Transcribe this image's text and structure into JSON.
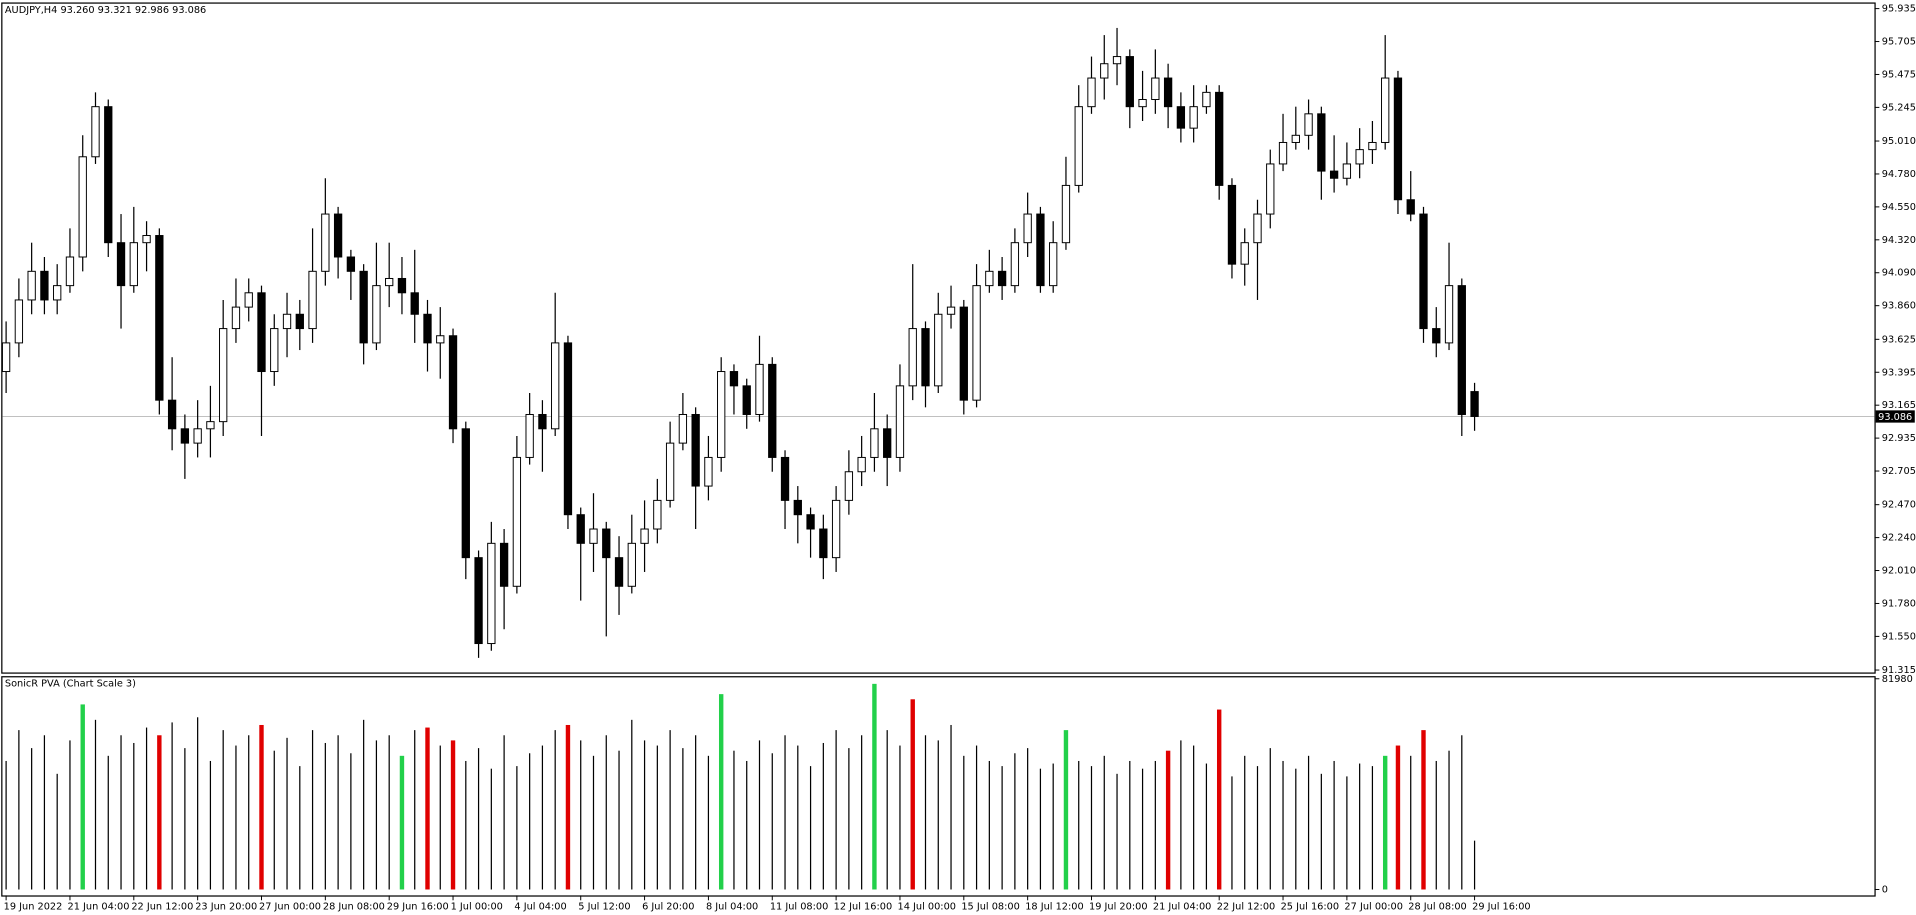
{
  "chart_data": [
    {
      "type": "candlestick",
      "title": "AUDJPY,H4  93.260 93.321 92.986 93.086",
      "categories": [
        "19 Jun 2022",
        null,
        null,
        null,
        null,
        "21 Jun 04:00",
        null,
        null,
        null,
        null,
        "22 Jun 12:00",
        null,
        null,
        null,
        null,
        "23 Jun 20:00",
        null,
        null,
        null,
        null,
        "27 Jun 00:00",
        null,
        null,
        null,
        null,
        "28 Jun 08:00",
        null,
        null,
        null,
        null,
        "29 Jun 16:00",
        null,
        null,
        null,
        null,
        "1 Jul 00:00",
        null,
        null,
        null,
        null,
        "4 Jul 04:00",
        null,
        null,
        null,
        null,
        "5 Jul 12:00",
        null,
        null,
        null,
        null,
        "6 Jul 20:00",
        null,
        null,
        null,
        null,
        "8 Jul 04:00",
        null,
        null,
        null,
        null,
        "11 Jul 08:00",
        null,
        null,
        null,
        null,
        "12 Jul 16:00",
        null,
        null,
        null,
        null,
        "14 Jul 00:00",
        null,
        null,
        null,
        null,
        "15 Jul 08:00",
        null,
        null,
        null,
        null,
        "18 Jul 12:00",
        null,
        null,
        null,
        null,
        "19 Jul 20:00",
        null,
        null,
        null,
        null,
        "21 Jul 04:00",
        null,
        null,
        null,
        null,
        "22 Jul 12:00",
        null,
        null,
        null,
        null,
        "25 Jul 16:00",
        null,
        null,
        null,
        null,
        "27 Jul 00:00",
        null,
        null,
        null,
        null,
        "28 Jul 08:00",
        null,
        null,
        null,
        null,
        "29 Jul 16:00"
      ],
      "open": [
        93.4,
        93.6,
        93.9,
        94.1,
        93.9,
        94.0,
        94.2,
        94.9,
        95.25,
        94.3,
        94.0,
        94.3,
        94.35,
        93.2,
        93.0,
        92.9,
        93.0,
        93.05,
        93.7,
        93.85,
        93.95,
        93.4,
        93.7,
        93.8,
        93.7,
        94.1,
        94.5,
        94.2,
        94.1,
        93.6,
        94.0,
        94.05,
        93.95,
        93.8,
        93.6,
        93.65,
        93.0,
        92.1,
        91.5,
        92.2,
        91.9,
        92.8,
        93.1,
        93.0,
        93.6,
        92.4,
        92.2,
        92.3,
        92.1,
        91.9,
        92.2,
        92.3,
        92.5,
        92.9,
        93.1,
        92.6,
        92.8,
        93.4,
        93.3,
        93.1,
        93.45,
        92.8,
        92.5,
        92.4,
        92.3,
        92.1,
        92.5,
        92.7,
        92.8,
        93.0,
        92.8,
        93.3,
        93.7,
        93.3,
        93.8,
        93.85,
        93.2,
        94.0,
        94.1,
        94.0,
        94.3,
        94.5,
        94.0,
        94.3,
        94.7,
        95.25,
        95.45,
        95.55,
        95.6,
        95.25,
        95.3,
        95.45,
        95.25,
        95.1,
        95.25,
        95.35,
        94.7,
        94.15,
        94.3,
        94.5,
        94.85,
        95.0,
        95.05,
        95.2,
        94.8,
        94.75,
        94.85,
        94.95,
        95.0,
        95.45,
        94.6,
        94.5,
        93.7,
        93.6,
        94.0,
        93.26
      ],
      "high": [
        93.75,
        94.05,
        94.3,
        94.2,
        94.15,
        94.4,
        95.05,
        95.35,
        95.3,
        94.5,
        94.55,
        94.45,
        94.4,
        93.5,
        93.1,
        93.2,
        93.3,
        93.9,
        94.05,
        94.05,
        94.0,
        93.8,
        93.95,
        93.9,
        94.4,
        94.75,
        94.55,
        94.25,
        94.15,
        94.3,
        94.3,
        94.2,
        94.25,
        93.9,
        93.85,
        93.7,
        93.05,
        92.15,
        92.35,
        92.3,
        92.95,
        93.25,
        93.2,
        93.95,
        93.65,
        92.45,
        92.55,
        92.35,
        92.25,
        92.4,
        92.5,
        92.65,
        93.05,
        93.25,
        93.15,
        92.95,
        93.5,
        93.45,
        93.35,
        93.65,
        93.5,
        92.85,
        92.6,
        92.45,
        92.4,
        92.6,
        92.85,
        92.95,
        93.25,
        93.1,
        93.45,
        94.15,
        93.75,
        93.95,
        94.0,
        93.9,
        94.15,
        94.25,
        94.2,
        94.4,
        94.65,
        94.55,
        94.45,
        94.9,
        95.4,
        95.6,
        95.75,
        95.8,
        95.65,
        95.5,
        95.65,
        95.55,
        95.35,
        95.4,
        95.4,
        95.4,
        94.75,
        94.4,
        94.6,
        94.95,
        95.2,
        95.25,
        95.3,
        95.25,
        95.05,
        95.0,
        95.1,
        95.15,
        95.75,
        95.5,
        94.8,
        94.55,
        93.85,
        94.3,
        94.05,
        93.321
      ],
      "low": [
        93.25,
        93.5,
        93.8,
        93.8,
        93.8,
        93.95,
        94.1,
        94.85,
        94.2,
        93.7,
        93.95,
        94.1,
        93.1,
        92.85,
        92.65,
        92.8,
        92.8,
        92.95,
        93.6,
        93.75,
        92.95,
        93.3,
        93.5,
        93.55,
        93.6,
        94.0,
        94.05,
        93.9,
        93.45,
        93.55,
        93.85,
        93.8,
        93.6,
        93.4,
        93.35,
        92.9,
        91.95,
        91.4,
        91.45,
        91.6,
        91.85,
        92.75,
        92.7,
        92.95,
        92.3,
        91.8,
        92.0,
        91.55,
        91.7,
        91.85,
        92.0,
        92.2,
        92.45,
        92.85,
        92.3,
        92.5,
        92.7,
        93.1,
        93.0,
        93.05,
        92.7,
        92.3,
        92.2,
        92.1,
        91.95,
        92.0,
        92.4,
        92.6,
        92.7,
        92.6,
        92.7,
        93.2,
        93.15,
        93.25,
        93.7,
        93.1,
        93.15,
        93.95,
        93.9,
        93.95,
        94.2,
        93.95,
        93.95,
        94.25,
        94.65,
        95.2,
        95.3,
        95.4,
        95.1,
        95.15,
        95.2,
        95.1,
        95.0,
        95.0,
        95.2,
        94.6,
        94.05,
        94.0,
        93.9,
        94.4,
        94.8,
        94.95,
        94.95,
        94.6,
        94.65,
        94.7,
        94.75,
        94.85,
        94.95,
        94.5,
        94.45,
        93.6,
        93.5,
        93.55,
        92.95,
        92.986
      ],
      "close": [
        93.6,
        93.9,
        94.1,
        93.9,
        94.0,
        94.2,
        94.9,
        95.25,
        94.3,
        94.0,
        94.3,
        94.35,
        93.2,
        93.0,
        92.9,
        93.0,
        93.05,
        93.7,
        93.85,
        93.95,
        93.4,
        93.7,
        93.8,
        93.7,
        94.1,
        94.5,
        94.2,
        94.1,
        93.6,
        94.0,
        94.05,
        93.95,
        93.8,
        93.6,
        93.65,
        93.0,
        92.1,
        91.5,
        92.2,
        91.9,
        92.8,
        93.1,
        93.0,
        93.6,
        92.4,
        92.2,
        92.3,
        92.1,
        91.9,
        92.2,
        92.3,
        92.5,
        92.9,
        93.1,
        92.6,
        92.8,
        93.4,
        93.3,
        93.1,
        93.45,
        92.8,
        92.5,
        92.4,
        92.3,
        92.1,
        92.5,
        92.7,
        92.8,
        93.0,
        92.8,
        93.3,
        93.7,
        93.3,
        93.8,
        93.85,
        93.2,
        94.0,
        94.1,
        94.0,
        94.3,
        94.5,
        94.0,
        94.3,
        94.7,
        95.25,
        95.45,
        95.55,
        95.6,
        95.25,
        95.3,
        95.45,
        95.25,
        95.1,
        95.25,
        95.35,
        94.7,
        94.15,
        94.3,
        94.5,
        94.85,
        95.0,
        95.05,
        95.2,
        94.8,
        94.75,
        94.85,
        94.95,
        95.0,
        95.45,
        94.6,
        94.5,
        93.7,
        93.6,
        94.0,
        93.1,
        93.086
      ],
      "last_price": 93.086,
      "ylim": [
        91.298,
        95.978
      ],
      "yticks": [
        95.935,
        95.705,
        95.475,
        95.245,
        {
          "value": 95.01,
          "label": "95.010"
        },
        {
          "value": 94.78,
          "label": "94.780"
        },
        {
          "value": 94.55,
          "label": "94.550"
        },
        {
          "value": 94.32,
          "label": "94.320"
        },
        {
          "value": 94.09,
          "label": "94.090"
        },
        {
          "value": 93.86,
          "label": "93.860"
        },
        93.625,
        93.395,
        93.165,
        92.935,
        92.705,
        {
          "value": 92.47,
          "label": "92.470"
        },
        {
          "value": 92.24,
          "label": "92.240"
        },
        {
          "value": 92.01,
          "label": "92.010"
        },
        {
          "value": 91.78,
          "label": "91.780"
        },
        {
          "value": 91.55,
          "label": "91.550"
        },
        91.315
      ],
      "up_color": "#ffffff",
      "down_color": "#000000",
      "grid": false
    },
    {
      "type": "bar",
      "title": "SonicR PVA  (Chart Scale 3)",
      "series": [
        {
          "values": [
            50000,
            62000,
            55000,
            60000,
            45000,
            58000,
            72000,
            66000,
            52000,
            60000,
            57000,
            63000,
            60000,
            65000,
            55000,
            67000,
            50000,
            62000,
            56000,
            60000,
            64000,
            54000,
            59000,
            48000,
            62000,
            57000,
            60000,
            53000,
            66000,
            58000,
            60000,
            52000,
            62000,
            63000,
            56000,
            58000,
            50000,
            55000,
            47000,
            60000,
            48000,
            53000,
            56000,
            62000,
            64000,
            58000,
            52000,
            60000,
            54000,
            66000,
            58000,
            56000,
            62000,
            55000,
            60000,
            52000,
            76000,
            54000,
            50000,
            58000,
            53000,
            60000,
            56000,
            48000,
            57000,
            62000,
            55000,
            60000,
            80000,
            62000,
            56000,
            74000,
            60000,
            58000,
            64000,
            52000,
            56000,
            50000,
            48000,
            53000,
            55000,
            47000,
            49000,
            62000,
            50000,
            48000,
            52000,
            45000,
            50000,
            47000,
            50000,
            54000,
            58000,
            56000,
            49000,
            70000,
            44000,
            52000,
            48000,
            55000,
            50000,
            47000,
            52000,
            45000,
            50000,
            44000,
            49000,
            48000,
            52000,
            56000,
            52000,
            62000,
            50000,
            54000,
            60000,
            19000
          ],
          "colors": [
            "#000000",
            "#000000",
            "#000000",
            "#000000",
            "#000000",
            "#000000",
            "#22d04a",
            "#000000",
            "#000000",
            "#000000",
            "#000000",
            "#000000",
            "#e00000",
            "#000000",
            "#000000",
            "#000000",
            "#000000",
            "#000000",
            "#000000",
            "#000000",
            "#e00000",
            "#000000",
            "#000000",
            "#000000",
            "#000000",
            "#000000",
            "#000000",
            "#000000",
            "#000000",
            "#000000",
            "#000000",
            "#22d04a",
            "#000000",
            "#e00000",
            "#000000",
            "#e00000",
            "#000000",
            "#000000",
            "#000000",
            "#000000",
            "#000000",
            "#000000",
            "#000000",
            "#000000",
            "#e00000",
            "#000000",
            "#000000",
            "#000000",
            "#000000",
            "#000000",
            "#000000",
            "#000000",
            "#000000",
            "#000000",
            "#000000",
            "#000000",
            "#22d04a",
            "#000000",
            "#000000",
            "#000000",
            "#000000",
            "#000000",
            "#000000",
            "#000000",
            "#000000",
            "#000000",
            "#000000",
            "#000000",
            "#22d04a",
            "#000000",
            "#000000",
            "#e00000",
            "#000000",
            "#000000",
            "#000000",
            "#000000",
            "#000000",
            "#000000",
            "#000000",
            "#000000",
            "#000000",
            "#000000",
            "#000000",
            "#22d04a",
            "#000000",
            "#000000",
            "#000000",
            "#000000",
            "#000000",
            "#000000",
            "#000000",
            "#e00000",
            "#000000",
            "#000000",
            "#000000",
            "#e00000",
            "#000000",
            "#000000",
            "#000000",
            "#000000",
            "#000000",
            "#000000",
            "#000000",
            "#000000",
            "#000000",
            "#000000",
            "#000000",
            "#000000",
            "#22d04a",
            "#e00000",
            "#000000",
            "#e00000",
            "#000000",
            "#000000",
            "#000000",
            "#000000"
          ]
        }
      ],
      "ylim": [
        -2300,
        83000
      ],
      "yticks": [
        81980,
        0
      ]
    }
  ]
}
